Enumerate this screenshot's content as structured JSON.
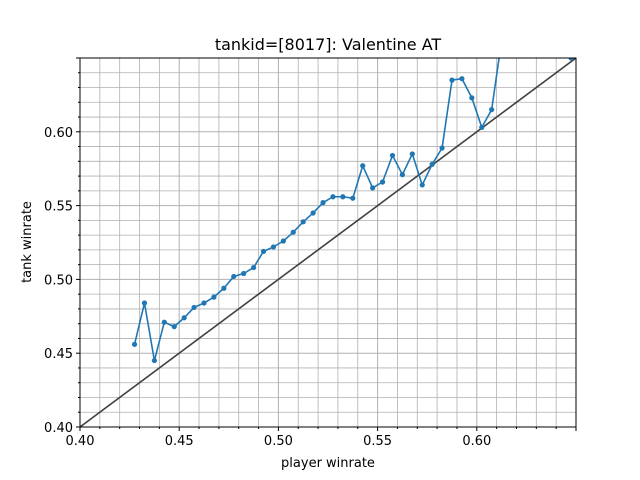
{
  "chart_data": {
    "type": "line",
    "title": "tankid=[8017]: Valentine AT",
    "xlabel": "player winrate",
    "ylabel": "tank winrate",
    "xlim": [
      0.4,
      0.65
    ],
    "ylim": [
      0.4,
      0.65
    ],
    "grid": true,
    "x_ticks": [
      "0.40",
      "0.45",
      "0.50",
      "0.55",
      "0.60"
    ],
    "y_ticks": [
      "0.40",
      "0.45",
      "0.50",
      "0.55",
      "0.60"
    ],
    "colors": {
      "series": "#1f77b4",
      "reference": "#404040",
      "grid": "#b0b0b0"
    },
    "reference_line": {
      "x": [
        0.4,
        0.65
      ],
      "y": [
        0.4,
        0.65
      ]
    },
    "series": [
      {
        "x": [
          0.4275,
          0.4325,
          0.4375,
          0.4425,
          0.4475,
          0.4525,
          0.4575,
          0.4625,
          0.4675,
          0.4725,
          0.4775,
          0.4825,
          0.4875,
          0.4925,
          0.4975,
          0.5025,
          0.5075,
          0.5125,
          0.5175,
          0.5225,
          0.5275,
          0.5325,
          0.5375,
          0.5425,
          0.5475,
          0.5525,
          0.5575,
          0.5625,
          0.5675,
          0.5725,
          0.5775,
          0.5825,
          0.5875,
          0.5925,
          0.5975,
          0.6025,
          0.6075,
          0.6125,
          0.6475
        ],
        "y": [
          0.456,
          0.484,
          0.445,
          0.471,
          0.468,
          0.474,
          0.481,
          0.484,
          0.488,
          0.494,
          0.502,
          0.504,
          0.508,
          0.519,
          0.522,
          0.526,
          0.532,
          0.539,
          0.545,
          0.552,
          0.556,
          0.556,
          0.555,
          0.577,
          0.562,
          0.566,
          0.584,
          0.571,
          0.585,
          0.564,
          0.578,
          0.589,
          0.635,
          0.636,
          0.623,
          0.603,
          0.615,
          0.662,
          0.65
        ]
      }
    ]
  }
}
